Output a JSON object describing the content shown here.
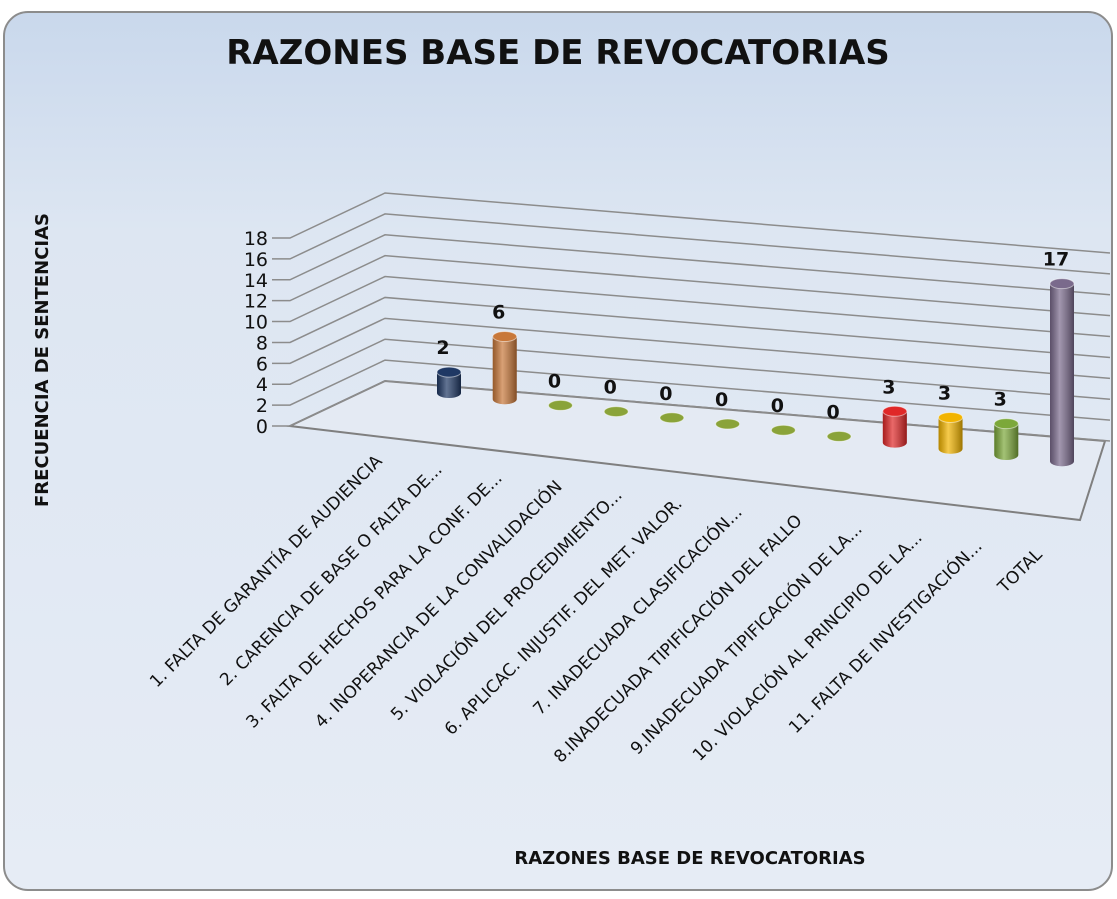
{
  "chart_data": {
    "type": "bar3d",
    "title": "RAZONES BASE DE REVOCATORIAS",
    "y_label": "FRECUENCIA DE SENTENCIAS",
    "x_label": "RAZONES BASE DE REVOCATORIAS",
    "categories": [
      "1. FALTA DE GARANTÍA DE AUDIENCIA",
      "2. CARENCIA DE BASE O FALTA DE...",
      "3. FALTA DE HECHOS PARA LA CONF. DE...",
      "4. INOPERANCIA DE LA CONVALIDACIÓN",
      "5. VIOLACIÓN DEL PROCEDIMIENTO...",
      "6. APLICAC. INJUSTIF. DEL MET. VALOR.",
      "7. INADECUADA  CLASIFICACIÓN...",
      "8.INADECUADA TIPIFICACIÓN DEL FALLO",
      "9.INADECUADA TIPIFICACIÓN DE LA...",
      "10. VIOLACIÓN AL PRINCIPIO DE LA...",
      "11. FALTA DE INVESTIGACIÓN...",
      "TOTAL"
    ],
    "values": [
      2,
      6,
      0,
      0,
      0,
      0,
      0,
      0,
      3,
      3,
      3,
      17
    ],
    "colors": [
      "#1f3864",
      "#c8783a",
      "#8aa339",
      "#8aa339",
      "#8aa339",
      "#8aa339",
      "#8aa339",
      "#8aa339",
      "#e02828",
      "#f2b400",
      "#7ca83a",
      "#7a6a8c"
    ],
    "ylim": [
      0,
      18
    ],
    "yticks": [
      0,
      2,
      4,
      6,
      8,
      10,
      12,
      14,
      16,
      18
    ],
    "grid": true
  }
}
